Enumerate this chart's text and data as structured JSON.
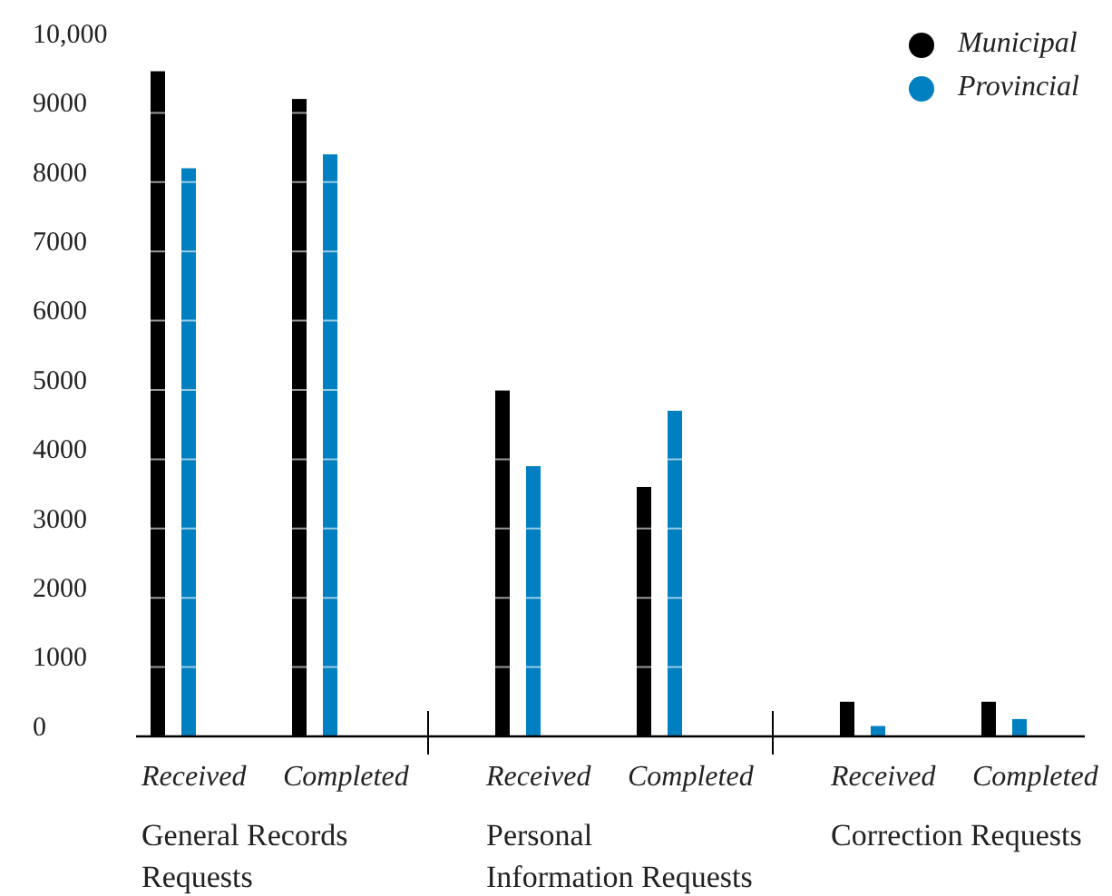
{
  "chart_data": {
    "type": "bar",
    "categories": [
      "Received",
      "Completed",
      "Received",
      "Completed",
      "Received",
      "Completed"
    ],
    "series": [
      {
        "name": "Municipal",
        "color": "#000000",
        "values": [
          9600,
          9200,
          5000,
          3600,
          500,
          500
        ]
      },
      {
        "name": "Provincial",
        "color": "#0080c0",
        "values": [
          8200,
          8400,
          3900,
          4700,
          150,
          250
        ]
      }
    ],
    "annotations": [
      "General Records Requests",
      "Personal Information Requests",
      "Correction Requests"
    ],
    "ylim": [
      0,
      10000
    ],
    "yticks": [
      0,
      1000,
      2000,
      3000,
      4000,
      5000,
      6000,
      7000,
      8000,
      9000,
      {
        "value": 10000,
        "label": "10,000"
      }
    ],
    "grid": "y",
    "legend": "top right"
  }
}
